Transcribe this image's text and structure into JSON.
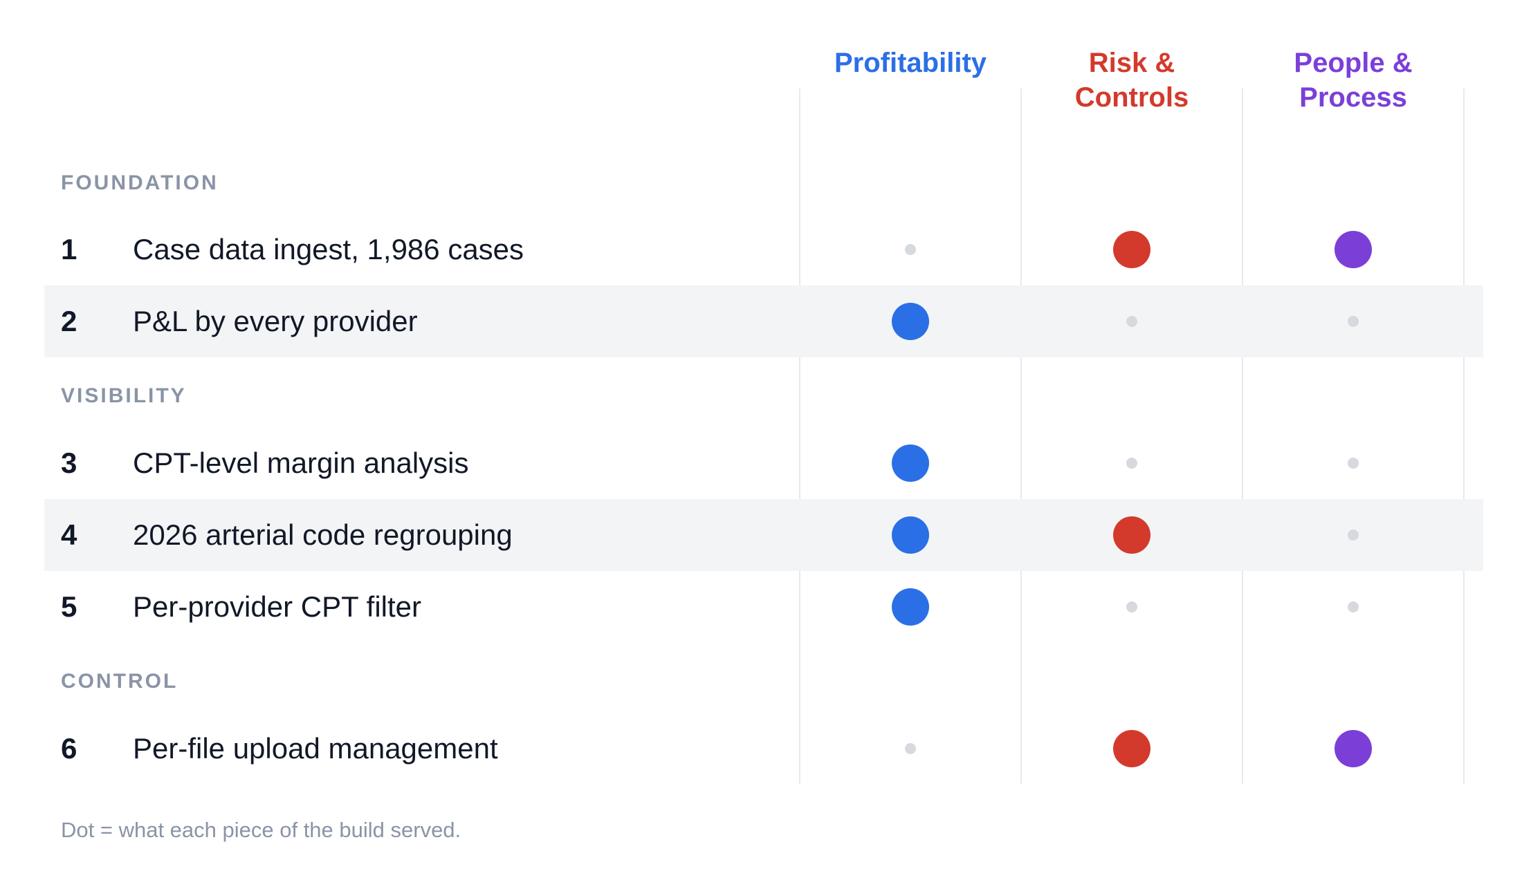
{
  "columns": [
    {
      "line1": "",
      "line2": "Profitability",
      "color": "#2b6fe6"
    },
    {
      "line1": "Risk &",
      "line2": "Controls",
      "color": "#d33a2c"
    },
    {
      "line1": "People &",
      "line2": "Process",
      "color": "#7b3fd8"
    }
  ],
  "sections": [
    {
      "label": "FOUNDATION"
    },
    {
      "label": "VISIBILITY"
    },
    {
      "label": "CONTROL"
    }
  ],
  "rows": [
    {
      "num": "1",
      "label": "Case data ingest, 1,986 cases",
      "section": 0,
      "shaded": false,
      "marks": [
        false,
        true,
        true
      ]
    },
    {
      "num": "2",
      "label": "P&L by every provider",
      "section": 0,
      "shaded": true,
      "marks": [
        true,
        false,
        false
      ]
    },
    {
      "num": "3",
      "label": "CPT-level margin analysis",
      "section": 1,
      "shaded": false,
      "marks": [
        true,
        false,
        false
      ]
    },
    {
      "num": "4",
      "label": "2026 arterial code regrouping",
      "section": 1,
      "shaded": true,
      "marks": [
        true,
        true,
        false
      ]
    },
    {
      "num": "5",
      "label": "Per-provider CPT filter",
      "section": 1,
      "shaded": false,
      "marks": [
        true,
        false,
        false
      ]
    },
    {
      "num": "6",
      "label": "Per-file upload management",
      "section": 2,
      "shaded": false,
      "marks": [
        false,
        true,
        true
      ]
    }
  ],
  "footnote": "Dot = what each piece of the build served."
}
